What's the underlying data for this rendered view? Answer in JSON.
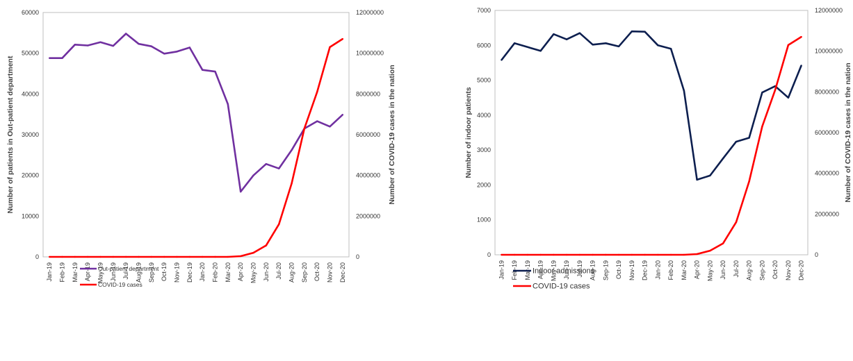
{
  "chart_data": [
    {
      "type": "line",
      "title": "",
      "xlabel": "",
      "ylabel": "Number of patients in Out-patient department",
      "y2label": "Number of COVID-19 cases in the nation",
      "ylim": [
        0,
        60000
      ],
      "y2lim": [
        0,
        12000000
      ],
      "yticks": [
        "0",
        "10000",
        "20000",
        "30000",
        "40000",
        "50000",
        "60000"
      ],
      "y2ticks": [
        "0",
        "2000000",
        "4000000",
        "6000000",
        "8000000",
        "10000000",
        "12000000"
      ],
      "categories": [
        "Jan-19",
        "Feb-19",
        "Mar-19",
        "Apr-19",
        "May-19",
        "Jun-19",
        "Jul-19",
        "Aug-19",
        "Sep-19",
        "Oct-19",
        "Nov-19",
        "Dec-19",
        "Jan-20",
        "Feb-20",
        "Mar-20",
        "Apr-20",
        "May-20",
        "Jun-20",
        "Jul-20",
        "Aug-20",
        "Sep-20",
        "Oct-20",
        "Nov-20",
        "Dec-20"
      ],
      "grid": false,
      "legend_position": "lower-left",
      "series": [
        {
          "name": "Out-patient department",
          "axis": "left",
          "color": "#7030a0",
          "values": [
            48800,
            48800,
            52100,
            51900,
            52700,
            51800,
            54800,
            52300,
            51700,
            49900,
            50400,
            51400,
            45900,
            45500,
            37500,
            16000,
            20000,
            22800,
            21700,
            26200,
            31500,
            33300,
            32000,
            34900
          ]
        },
        {
          "name": "COVID-19 cases",
          "axis": "right",
          "color": "#ff0000",
          "values": [
            0,
            0,
            0,
            0,
            0,
            0,
            0,
            0,
            0,
            0,
            0,
            0,
            0,
            0,
            1500,
            35000,
            200000,
            560000,
            1600000,
            3600000,
            6300000,
            8100000,
            10300000,
            10700000
          ]
        }
      ]
    },
    {
      "type": "line",
      "title": "",
      "xlabel": "",
      "ylabel": "Number of indoor patients",
      "y2label": "Number of COVID-19 cases in the nation",
      "ylim": [
        0,
        7000
      ],
      "y2lim": [
        0,
        12000000
      ],
      "yticks": [
        "0",
        "1000",
        "2000",
        "3000",
        "4000",
        "5000",
        "6000",
        "7000"
      ],
      "y2ticks": [
        "0",
        "2000000",
        "4000000",
        "6000000",
        "8000000",
        "10000000",
        "12000000"
      ],
      "categories": [
        "Jan-19",
        "Feb-19",
        "Mar-19",
        "Apr-19",
        "May-19",
        "Jun-19",
        "Jul-19",
        "Aug-19",
        "Sep-19",
        "Oct-19",
        "Nov-19",
        "Dec-19",
        "Jan-20",
        "Feb-20",
        "Mar-20",
        "Apr-20",
        "May-20",
        "Jun-20",
        "Jul-20",
        "Aug-20",
        "Sep-20",
        "Oct-20",
        "Nov-20",
        "Dec-20"
      ],
      "grid": false,
      "legend_position": "lower-left",
      "series": [
        {
          "name": "Indoor admissions",
          "axis": "left",
          "color": "#0d1f4f",
          "values": [
            5580,
            6060,
            5950,
            5840,
            6320,
            6170,
            6350,
            6020,
            6060,
            5970,
            6400,
            6390,
            6000,
            5900,
            4700,
            2150,
            2270,
            2760,
            3240,
            3350,
            4650,
            4830,
            4500,
            5420
          ]
        },
        {
          "name": "COVID-19 cases",
          "axis": "right",
          "color": "#ff0000",
          "values": [
            0,
            0,
            0,
            0,
            0,
            0,
            0,
            0,
            0,
            0,
            0,
            0,
            0,
            0,
            1500,
            35000,
            200000,
            560000,
            1600000,
            3600000,
            6300000,
            8100000,
            10300000,
            10700000
          ]
        }
      ]
    }
  ]
}
